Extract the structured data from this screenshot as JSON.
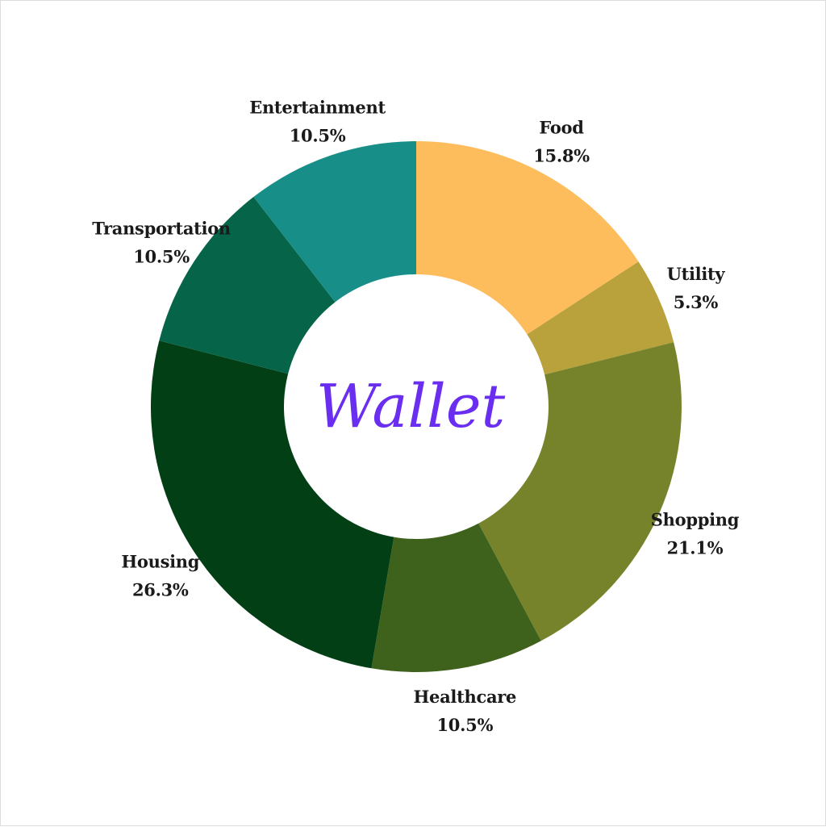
{
  "chart_data": {
    "type": "pie",
    "donut": true,
    "center_label": "Wallet",
    "start_angle_deg": 0,
    "direction": "clockwise",
    "slices": [
      {
        "label": "Food",
        "value": 15.8,
        "value_label": "15.8%",
        "color": "#fdbd5c"
      },
      {
        "label": "Utility",
        "value": 5.3,
        "value_label": "5.3%",
        "color": "#b9a13b"
      },
      {
        "label": "Shopping",
        "value": 21.1,
        "value_label": "21.1%",
        "color": "#77832a"
      },
      {
        "label": "Healthcare",
        "value": 10.5,
        "value_label": "10.5%",
        "color": "#3e611c"
      },
      {
        "label": "Housing",
        "value": 26.3,
        "value_label": "26.3%",
        "color": "#023f15"
      },
      {
        "label": "Transportation",
        "value": 10.5,
        "value_label": "10.5%",
        "color": "#066548"
      },
      {
        "label": "Entertainment",
        "value": 10.5,
        "value_label": "10.5%",
        "color": "#178e87"
      }
    ]
  }
}
